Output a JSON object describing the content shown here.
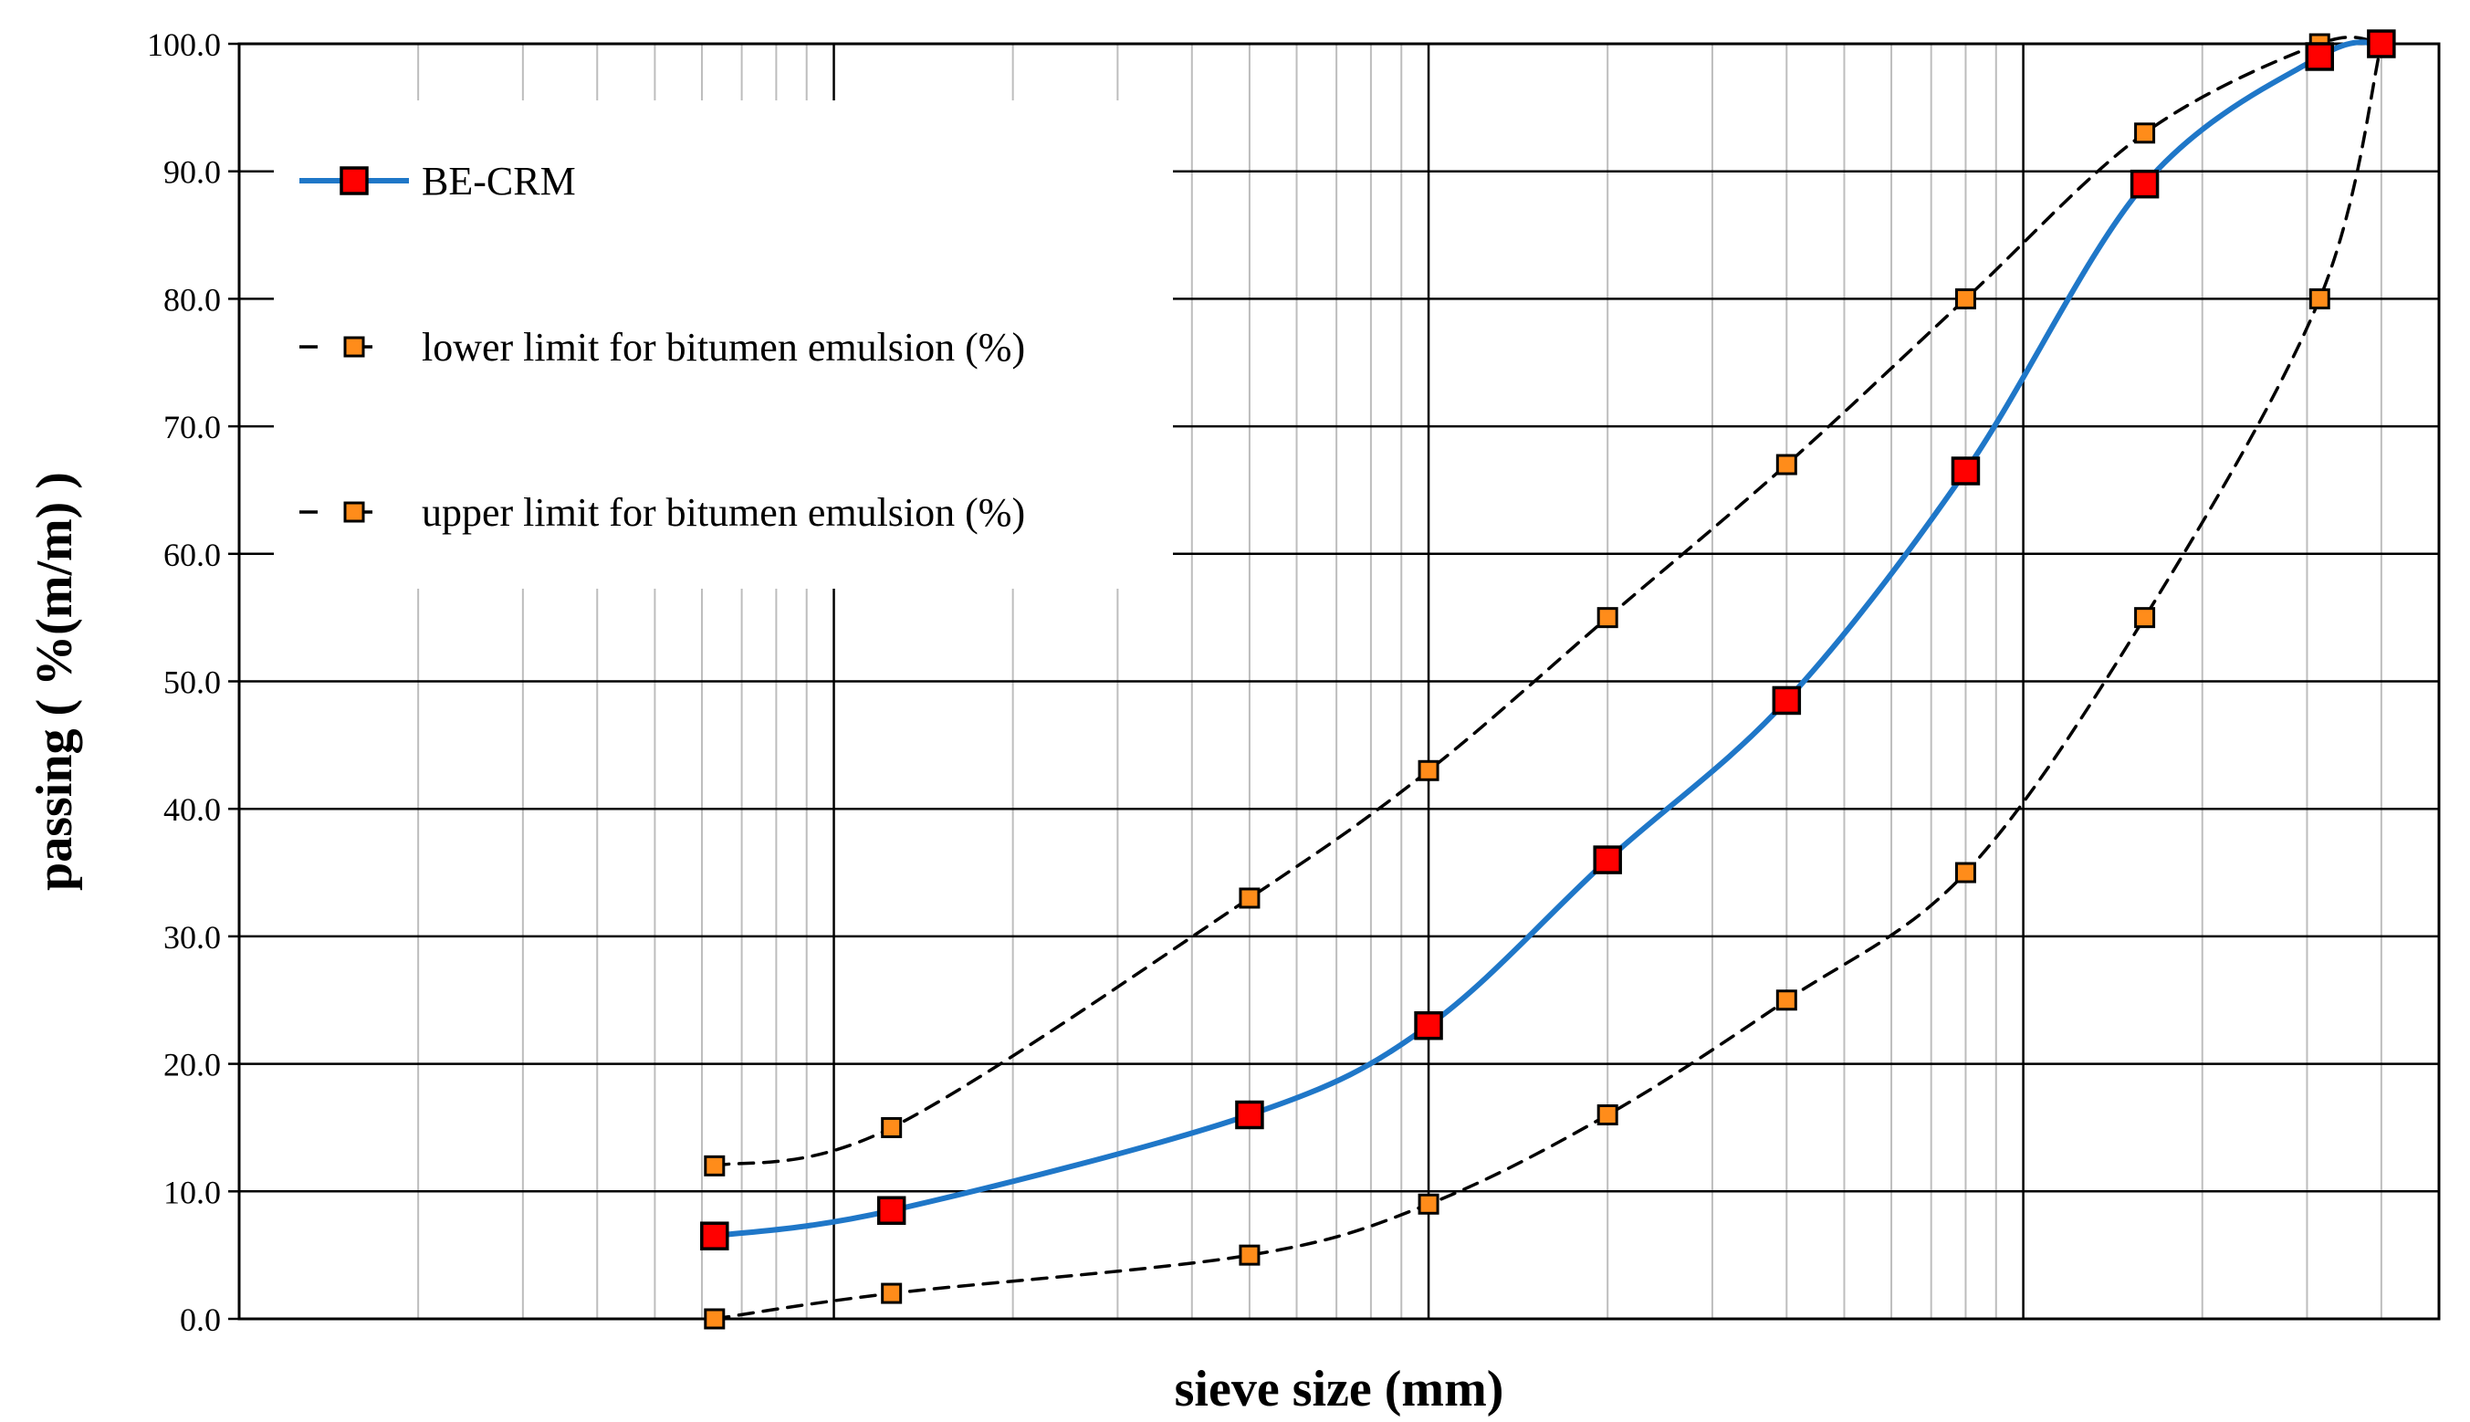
{
  "chart_data": {
    "type": "line",
    "title": "",
    "xlabel": "sieve size (mm)",
    "ylabel": "passing ( %(m/m) )",
    "x_scale": "log",
    "x_tick_labels_visible": false,
    "xlim": [
      0.01,
      50
    ],
    "ylim": [
      0,
      100
    ],
    "y_ticks": [
      "0.0",
      "10.0",
      "20.0",
      "30.0",
      "40.0",
      "50.0",
      "60.0",
      "70.0",
      "80.0",
      "90.0",
      "100.0"
    ],
    "grid": true,
    "legend_position": "top-left",
    "series": [
      {
        "name": "BE-CRM",
        "style": "solid",
        "color": "#1F77C8",
        "marker_color": "#FF0000",
        "x": [
          0.063,
          0.125,
          0.5,
          1,
          2,
          4,
          8,
          16,
          31.5,
          40
        ],
        "values": [
          6.5,
          8.5,
          16.0,
          23.0,
          36.0,
          48.5,
          66.5,
          89.0,
          99.0,
          100.0
        ]
      },
      {
        "name": "lower limit for bitumen emulsion (%)",
        "style": "dashed",
        "color": "#000000",
        "marker_color": "#FF8C1A",
        "x": [
          0.063,
          0.125,
          0.5,
          1,
          2,
          4,
          8,
          16,
          31.5,
          40
        ],
        "values": [
          0.0,
          2.0,
          5.0,
          9.0,
          16.0,
          25.0,
          35.0,
          55.0,
          80.0,
          100.0
        ]
      },
      {
        "name": "upper limit for bitumen emulsion (%)",
        "style": "dashed",
        "color": "#000000",
        "marker_color": "#FF8C1A",
        "x": [
          0.063,
          0.125,
          0.5,
          1,
          2,
          4,
          8,
          16,
          31.5,
          40
        ],
        "values": [
          12.0,
          15.0,
          33.0,
          43.0,
          55.0,
          67.0,
          80.0,
          93.0,
          100.0,
          100.0
        ]
      }
    ]
  }
}
